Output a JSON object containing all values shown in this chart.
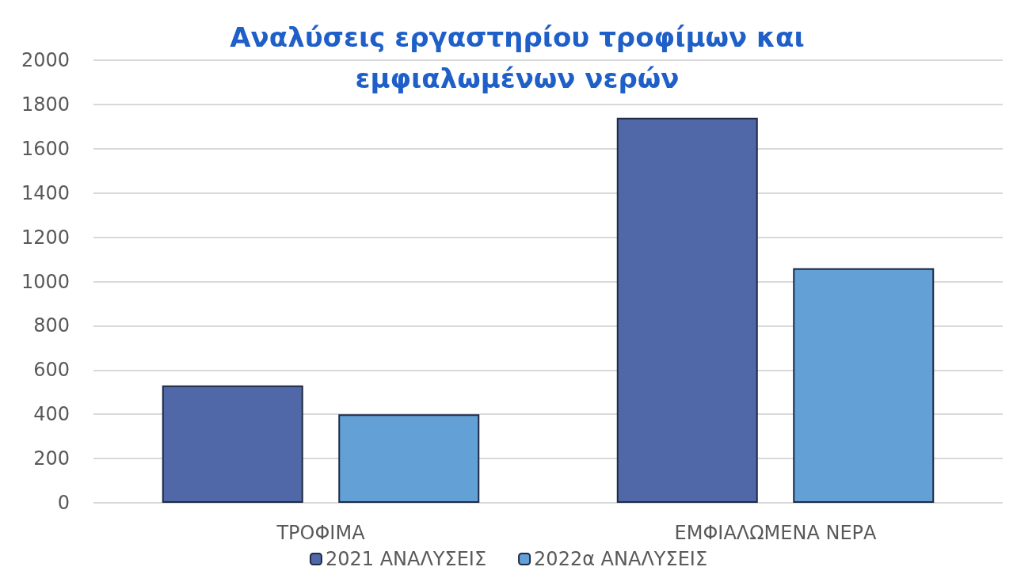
{
  "chart_data": {
    "type": "bar",
    "title": "Αναλύσεις εργαστηρίου τροφίμων και\nεμφιαλωμένων νερών",
    "categories": [
      "ΤΡΟΦΙΜΑ",
      "ΕΜΦΙΑΛΩΜΕΝΑ ΝΕΡΑ"
    ],
    "series": [
      {
        "name": "2021 ΑΝΑΛΥΣΕΙΣ",
        "color": "#5068a8",
        "values": [
          530,
          1740
        ]
      },
      {
        "name": "2022α ΑΝΑΛΥΣΕΙΣ",
        "color": "#63a0d6",
        "values": [
          400,
          1060
        ]
      }
    ],
    "ylim": [
      0,
      2000
    ],
    "yticks": [
      0,
      200,
      400,
      600,
      800,
      1000,
      1200,
      1400,
      1600,
      1800,
      2000
    ],
    "grid": "y",
    "legend": "bottom"
  }
}
